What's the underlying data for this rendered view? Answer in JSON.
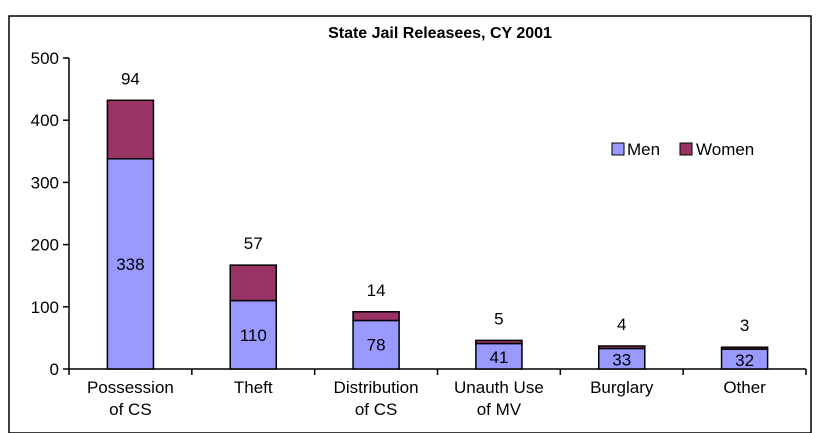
{
  "chart_data": {
    "type": "bar",
    "stacked": true,
    "title": "State Jail Releasees, CY 2001",
    "xlabel": "",
    "ylabel": "",
    "ylim": [
      0,
      500
    ],
    "yticks": [
      0,
      100,
      200,
      300,
      400,
      500
    ],
    "categories": [
      [
        "Possession",
        "of CS"
      ],
      [
        "Theft"
      ],
      [
        "Distribution",
        "of CS"
      ],
      [
        "Unauth Use",
        "of MV"
      ],
      [
        "Burglary"
      ],
      [
        "Other"
      ]
    ],
    "series": [
      {
        "name": "Men",
        "color": "#9999ff",
        "values": [
          338,
          110,
          78,
          41,
          33,
          32
        ]
      },
      {
        "name": "Women",
        "color": "#993366",
        "values": [
          94,
          57,
          14,
          5,
          4,
          3
        ]
      }
    ],
    "legend_position": "top-right",
    "grid": false
  }
}
